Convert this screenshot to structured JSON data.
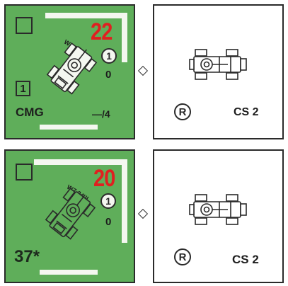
{
  "counters": [
    {
      "front": {
        "firepower": "22",
        "vehicle_name": "WZ.34 I",
        "circled_value": "1",
        "value": "0",
        "boxed_value": "1",
        "weapon": "CMG",
        "stat": "—/4"
      },
      "back": {
        "symbol": "R",
        "label": "CS 2"
      }
    },
    {
      "front": {
        "firepower": "20",
        "vehicle_name": "WZ.34 II",
        "circled_value": "1",
        "value": "0",
        "cost": "37*"
      },
      "back": {
        "symbol": "R",
        "label": "CS 2"
      }
    }
  ],
  "colors": {
    "front_bg": "#5fae5a",
    "firepower": "#e02020",
    "frame": "#f4f7f0",
    "ink": "#2a2a2a"
  },
  "icons": [
    "armored-car-top-view-icon",
    "diamond-separator-icon"
  ]
}
